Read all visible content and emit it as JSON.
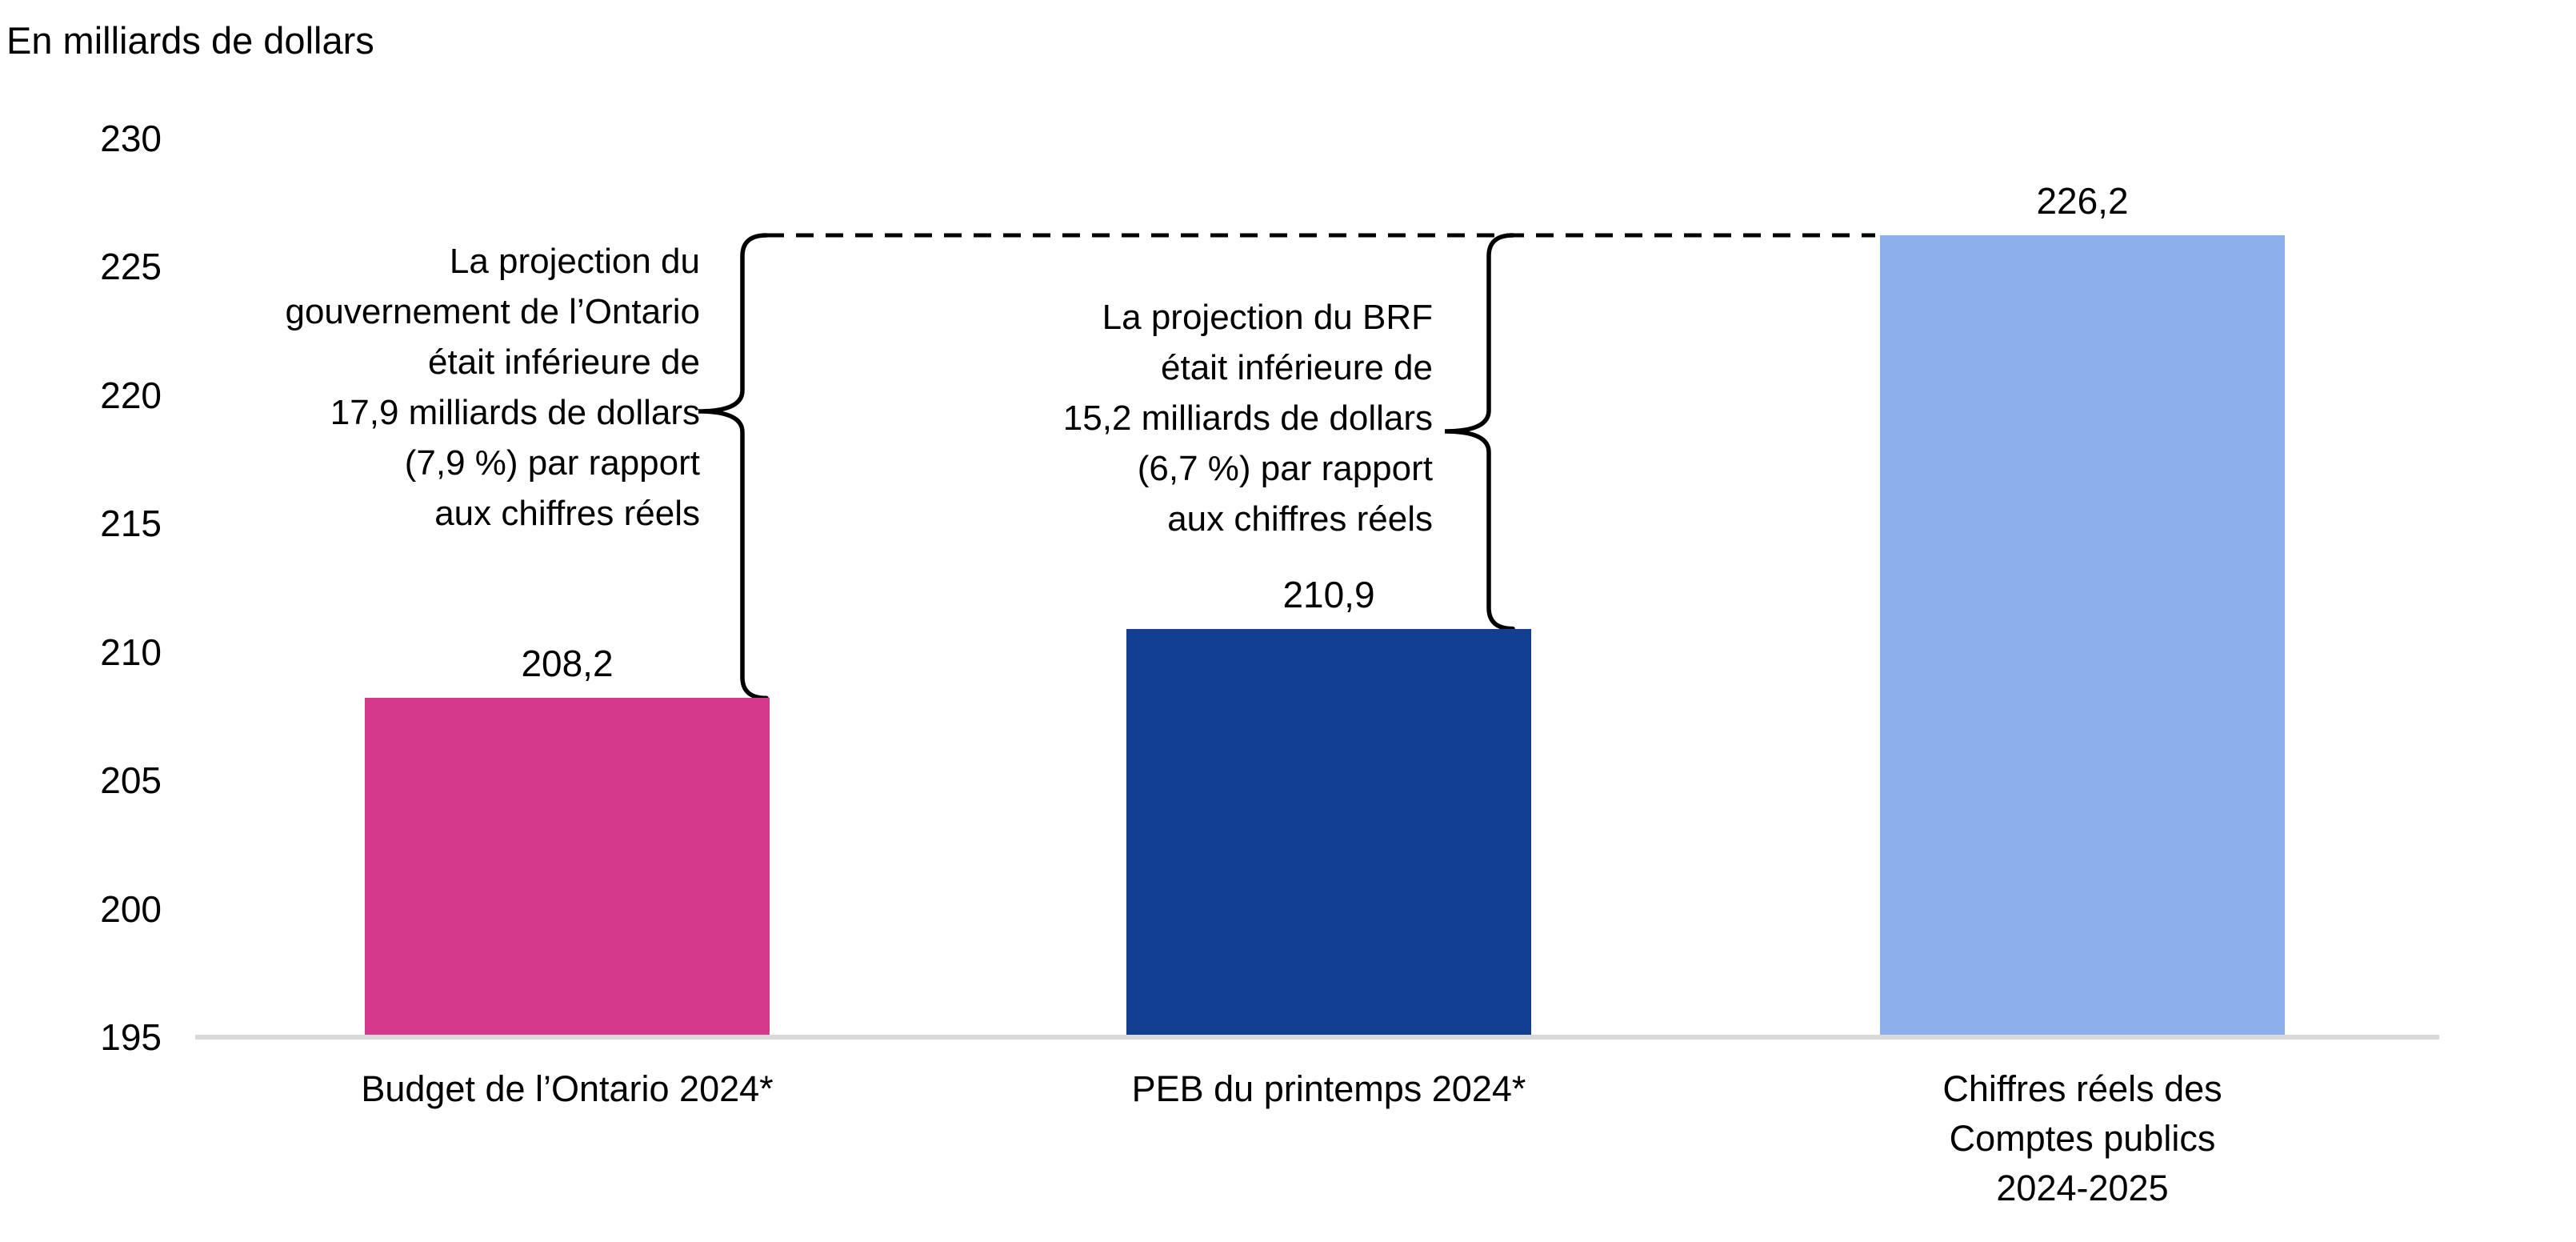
{
  "title": "En milliards de dollars",
  "colors": {
    "bar_budget": "#D4398B",
    "bar_peb": "#133F92",
    "bar_actual": "#8BB0EB",
    "axis_line": "#D9D9D9",
    "reference_line": "#000000",
    "text": "#000000"
  },
  "y_axis": {
    "min": 195,
    "max": 230,
    "step": 5,
    "ticks": [
      "230",
      "225",
      "220",
      "215",
      "210",
      "205",
      "200",
      "195"
    ]
  },
  "bars": [
    {
      "id": "budget-ontario-2024",
      "label_lines": [
        "Budget de l’Ontario 2024*"
      ],
      "value": 208.2,
      "value_label": "208,2",
      "color_key": "bar_budget"
    },
    {
      "id": "peb-printemps-2024",
      "label_lines": [
        "PEB du printemps 2024*"
      ],
      "value": 210.9,
      "value_label": "210,9",
      "color_key": "bar_peb"
    },
    {
      "id": "chiffres-reels-comptes-publics",
      "label_lines": [
        "Chiffres réels des",
        "Comptes publics",
        "2024-2025"
      ],
      "value": 226.2,
      "value_label": "226,2",
      "color_key": "bar_actual"
    }
  ],
  "annotations": [
    {
      "id": "annotation-budget-vs-actual",
      "lines": [
        "La projection du",
        "gouvernement de l’Ontario",
        "était inférieure de",
        "17,9 milliards de dollars",
        "(7,9 %) par rapport",
        "aux chiffres réels"
      ]
    },
    {
      "id": "annotation-brf-vs-actual",
      "lines": [
        "La projection du BRF",
        "était inférieure de",
        "15,2 milliards de dollars",
        "(6,7 %) par rapport",
        "aux chiffres réels"
      ]
    }
  ],
  "reference_line": {
    "value": 226.2,
    "style": "dashed"
  },
  "chart_data": {
    "type": "bar",
    "title": "En milliards de dollars",
    "xlabel": "",
    "ylabel": "En milliards de dollars",
    "categories": [
      "Budget de l’Ontario 2024*",
      "PEB du printemps 2024*",
      "Chiffres réels des Comptes publics 2024-2025"
    ],
    "values": [
      208.2,
      210.9,
      226.2
    ],
    "value_labels": [
      "208,2",
      "210,9",
      "226,2"
    ],
    "bar_colors": [
      "#D4398B",
      "#133F92",
      "#8BB0EB"
    ],
    "ylim": [
      195,
      230
    ],
    "ytick_step": 5,
    "grid": false,
    "legend_position": "none",
    "reference_line_value": 226.2,
    "annotations": [
      "La projection du gouvernement de l’Ontario était inférieure de 17,9 milliards de dollars (7,9 %) par rapport aux chiffres réels",
      "La projection du BRF était inférieure de 15,2 milliards de dollars (6,7 %) par rapport aux chiffres réels"
    ]
  }
}
